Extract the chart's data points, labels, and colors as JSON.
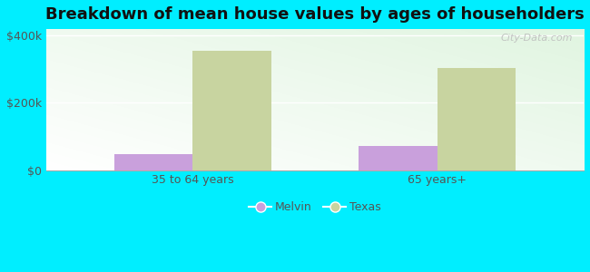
{
  "title": "Breakdown of mean house values by ages of householders",
  "categories": [
    "35 to 64 years",
    "65 years+"
  ],
  "melvin_values": [
    48000,
    72000
  ],
  "texas_values": [
    355000,
    305000
  ],
  "melvin_color": "#c9a0dc",
  "texas_color": "#c8d4a0",
  "background_outer": "#00eeff",
  "ylim": [
    0,
    420000
  ],
  "ytick_labels": [
    "$0",
    "$200k",
    "$400k"
  ],
  "ytick_values": [
    0,
    200000,
    400000
  ],
  "bar_width": 0.32,
  "legend_labels": [
    "Melvin",
    "Texas"
  ],
  "title_fontsize": 13,
  "tick_fontsize": 9,
  "legend_fontsize": 9,
  "watermark": "City-Data.com"
}
